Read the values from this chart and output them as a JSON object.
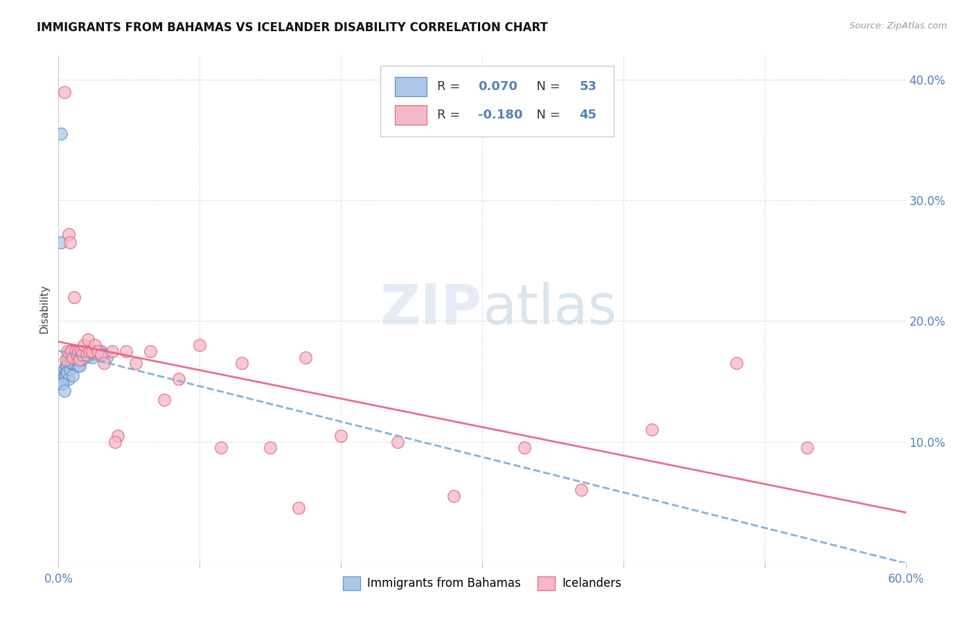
{
  "title": "IMMIGRANTS FROM BAHAMAS VS ICELANDER DISABILITY CORRELATION CHART",
  "source": "Source: ZipAtlas.com",
  "ylabel": "Disability",
  "xlim": [
    0.0,
    0.6
  ],
  "ylim": [
    0.0,
    0.42
  ],
  "xtick_positions": [
    0.0,
    0.1,
    0.2,
    0.3,
    0.4,
    0.5,
    0.6
  ],
  "xtick_labels": [
    "0.0%",
    "",
    "",
    "",
    "",
    "",
    "60.0%"
  ],
  "ytick_positions": [
    0.0,
    0.1,
    0.2,
    0.3,
    0.4
  ],
  "ytick_labels_right": [
    "",
    "10.0%",
    "20.0%",
    "30.0%",
    "40.0%"
  ],
  "r_blue": 0.07,
  "n_blue": 53,
  "r_pink": -0.18,
  "n_pink": 45,
  "blue_fill": "#aec6e8",
  "blue_edge": "#5b8ec4",
  "pink_fill": "#f5b8c8",
  "pink_edge": "#e0607a",
  "trendline_blue_color": "#7aaad4",
  "trendline_pink_color": "#e8607a",
  "watermark_color": "#d0dff0",
  "blue_scatter_x": [
    0.002,
    0.003,
    0.003,
    0.004,
    0.004,
    0.005,
    0.005,
    0.005,
    0.006,
    0.006,
    0.006,
    0.007,
    0.007,
    0.007,
    0.008,
    0.008,
    0.008,
    0.008,
    0.009,
    0.009,
    0.009,
    0.01,
    0.01,
    0.01,
    0.01,
    0.011,
    0.011,
    0.012,
    0.012,
    0.013,
    0.013,
    0.014,
    0.014,
    0.015,
    0.015,
    0.015,
    0.016,
    0.016,
    0.017,
    0.018,
    0.019,
    0.02,
    0.021,
    0.022,
    0.024,
    0.025,
    0.027,
    0.03,
    0.032,
    0.034,
    0.002,
    0.003,
    0.004
  ],
  "blue_scatter_y": [
    0.355,
    0.152,
    0.148,
    0.16,
    0.155,
    0.163,
    0.158,
    0.155,
    0.168,
    0.163,
    0.158,
    0.172,
    0.168,
    0.152,
    0.175,
    0.17,
    0.165,
    0.16,
    0.175,
    0.17,
    0.165,
    0.175,
    0.17,
    0.165,
    0.155,
    0.175,
    0.168,
    0.172,
    0.165,
    0.175,
    0.168,
    0.172,
    0.163,
    0.175,
    0.17,
    0.163,
    0.175,
    0.168,
    0.172,
    0.175,
    0.17,
    0.172,
    0.175,
    0.172,
    0.17,
    0.175,
    0.173,
    0.175,
    0.172,
    0.17,
    0.265,
    0.148,
    0.142
  ],
  "pink_scatter_x": [
    0.004,
    0.005,
    0.006,
    0.007,
    0.008,
    0.009,
    0.01,
    0.011,
    0.012,
    0.013,
    0.014,
    0.015,
    0.016,
    0.017,
    0.018,
    0.02,
    0.021,
    0.022,
    0.024,
    0.026,
    0.028,
    0.03,
    0.032,
    0.038,
    0.042,
    0.048,
    0.055,
    0.065,
    0.075,
    0.085,
    0.1,
    0.115,
    0.13,
    0.15,
    0.175,
    0.2,
    0.24,
    0.28,
    0.33,
    0.37,
    0.42,
    0.48,
    0.53,
    0.04,
    0.17
  ],
  "pink_scatter_y": [
    0.39,
    0.168,
    0.175,
    0.272,
    0.265,
    0.175,
    0.17,
    0.22,
    0.175,
    0.172,
    0.175,
    0.168,
    0.175,
    0.172,
    0.18,
    0.172,
    0.185,
    0.175,
    0.175,
    0.18,
    0.175,
    0.172,
    0.165,
    0.175,
    0.105,
    0.175,
    0.165,
    0.175,
    0.135,
    0.152,
    0.18,
    0.095,
    0.165,
    0.095,
    0.17,
    0.105,
    0.1,
    0.055,
    0.095,
    0.06,
    0.11,
    0.165,
    0.095,
    0.1,
    0.045
  ]
}
